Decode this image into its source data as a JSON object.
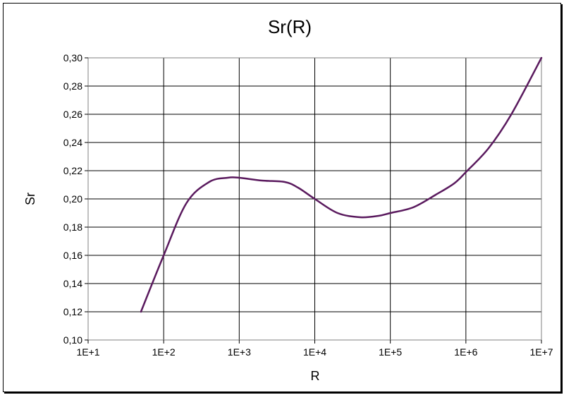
{
  "chart_data": {
    "type": "line",
    "title": "Sr(R)",
    "xlabel": "R",
    "ylabel": "Sr",
    "x_scale": "log",
    "xlim": [
      10,
      10000000
    ],
    "ylim": [
      0.1,
      0.3
    ],
    "x_ticks": [
      10,
      100,
      1000,
      10000,
      100000,
      1000000,
      10000000
    ],
    "x_tick_labels": [
      "1E+1",
      "1E+2",
      "1E+3",
      "1E+4",
      "1E+5",
      "1E+6",
      "1E+7"
    ],
    "y_ticks": [
      0.1,
      0.12,
      0.14,
      0.16,
      0.18,
      0.2,
      0.22,
      0.24,
      0.26,
      0.28,
      0.3
    ],
    "y_tick_labels": [
      "0,10",
      "0,12",
      "0,14",
      "0,16",
      "0,18",
      "0,20",
      "0,22",
      "0,24",
      "0,26",
      "0,28",
      "0,30"
    ],
    "grid": {
      "horizontal": true,
      "vertical": true
    },
    "series": [
      {
        "color": "#5a1a5e",
        "x": [
          50,
          100,
          200,
          400,
          700,
          1000,
          2000,
          4000,
          6000,
          10000,
          20000,
          40000,
          70000,
          100000,
          200000,
          400000,
          700000,
          1000000,
          2000000,
          4000000,
          10000000
        ],
        "y": [
          0.12,
          0.16,
          0.197,
          0.212,
          0.215,
          0.215,
          0.213,
          0.212,
          0.208,
          0.2,
          0.19,
          0.187,
          0.188,
          0.19,
          0.194,
          0.203,
          0.211,
          0.219,
          0.236,
          0.26,
          0.3
        ]
      }
    ]
  }
}
